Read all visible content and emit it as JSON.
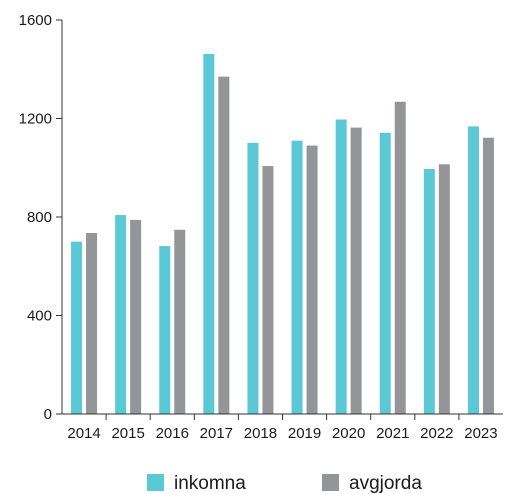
{
  "chart_data": {
    "type": "bar",
    "categories": [
      "2014",
      "2015",
      "2016",
      "2017",
      "2018",
      "2019",
      "2020",
      "2021",
      "2022",
      "2023"
    ],
    "series": [
      {
        "name": "inkomna",
        "color": "#5bc8d6",
        "values": [
          700,
          808,
          682,
          1462,
          1101,
          1110,
          1196,
          1142,
          995,
          1168
        ]
      },
      {
        "name": "avgjorda",
        "color": "#939598",
        "values": [
          735,
          788,
          748,
          1370,
          1007,
          1090,
          1163,
          1268,
          1014,
          1122
        ]
      }
    ],
    "ylim": [
      0,
      1600
    ],
    "yticks": [
      "0",
      "400",
      "800",
      "1200",
      "1600"
    ],
    "grid": false,
    "legend_position": "bottom"
  }
}
